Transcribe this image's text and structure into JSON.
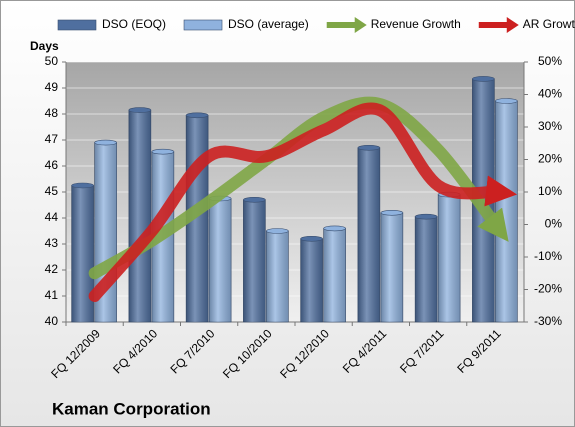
{
  "chart_data": {
    "type": "bar",
    "title": "Kaman Corporation",
    "y_label": "Days",
    "categories": [
      "FQ 12/2009",
      "FQ 4/2010",
      "FQ 7/2010",
      "FQ 10/2010",
      "FQ 12/2010",
      "FQ 4/2011",
      "FQ 7/2011",
      "FQ 9/2011"
    ],
    "series": [
      {
        "name": "DSO (EOQ)",
        "type": "bar",
        "color": "#4f6f9f",
        "values": [
          45.25,
          48.15,
          47.95,
          44.7,
          43.2,
          46.7,
          44.05,
          49.35
        ]
      },
      {
        "name": "DSO (average)",
        "type": "bar",
        "color": "#8fb2de",
        "values": [
          46.9,
          46.55,
          44.75,
          43.5,
          43.6,
          44.2,
          44.9,
          48.5
        ]
      },
      {
        "name": "Revenue Growth",
        "type": "line",
        "axis": "y2",
        "color": "#7fa646",
        "values": [
          -15,
          -5,
          7,
          20,
          33,
          37,
          23,
          0
        ]
      },
      {
        "name": "AR Growth",
        "type": "line",
        "axis": "y2",
        "color": "#cc2020",
        "values": [
          -22,
          -2,
          21,
          21,
          29,
          35,
          12,
          10
        ]
      }
    ],
    "ylim": [
      40,
      50
    ],
    "yticks": [
      40,
      41,
      42,
      43,
      44,
      45,
      46,
      47,
      48,
      49,
      50
    ],
    "y2lim": [
      -30,
      50
    ],
    "y2ticks": [
      {
        "value": -30,
        "label": "-30%"
      },
      {
        "value": -20,
        "label": "-20%"
      },
      {
        "value": -10,
        "label": "-10%"
      },
      {
        "value": 0,
        "label": "0%"
      },
      {
        "value": 10,
        "label": "10%"
      },
      {
        "value": 20,
        "label": "20%"
      },
      {
        "value": 30,
        "label": "30%"
      },
      {
        "value": 40,
        "label": "40%"
      },
      {
        "value": 50,
        "label": "50%"
      }
    ],
    "grid": true,
    "legend": "top"
  }
}
